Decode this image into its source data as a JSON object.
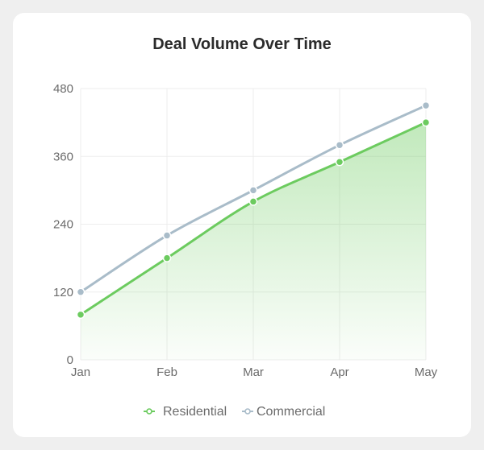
{
  "chart_data": {
    "type": "area",
    "title": "Deal Volume Over Time",
    "xlabel": "",
    "ylabel": "",
    "categories": [
      "Jan",
      "Feb",
      "Mar",
      "Apr",
      "May"
    ],
    "ylim": [
      0,
      480
    ],
    "yticks": [
      0,
      120,
      240,
      360,
      480
    ],
    "grid": true,
    "legend_position": "bottom",
    "series": [
      {
        "name": "Residential",
        "values": [
          80,
          180,
          280,
          350,
          420
        ],
        "color": "#6ccb5f",
        "filled": true
      },
      {
        "name": "Commercial",
        "values": [
          120,
          220,
          300,
          380,
          450
        ],
        "color": "#a9bcc9",
        "filled": false
      }
    ]
  }
}
